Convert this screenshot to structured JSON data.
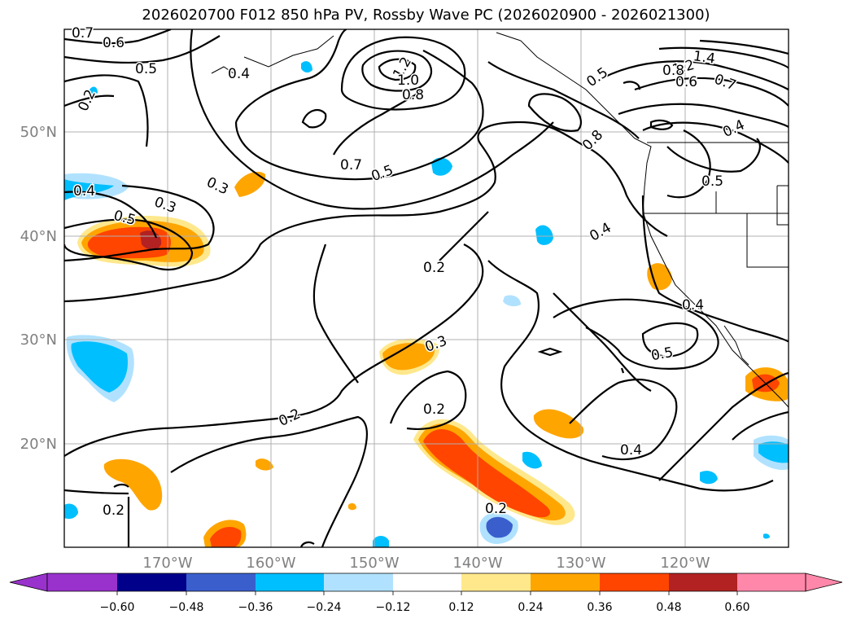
{
  "title": "2026020700 F012 850 hPa PV, Rossby Wave PC (2026020900 - 2026021300)",
  "map": {
    "lat_labels": [
      "50°N",
      "40°N",
      "30°N",
      "20°N"
    ],
    "lon_labels": [
      "170°W",
      "160°W",
      "150°W",
      "140°W",
      "130°W",
      "120°W"
    ],
    "gridlines": true
  },
  "colorbar": {
    "ticks": [
      "−0.60",
      "−0.48",
      "−0.36",
      "−0.24",
      "−0.12",
      "0.12",
      "0.24",
      "0.36",
      "0.48",
      "0.60"
    ],
    "colors": [
      "#9932cc",
      "#00008b",
      "#3a5fcd",
      "#00bfff",
      "#b0e2ff",
      "#ffffff",
      "#ffe88c",
      "#ffa500",
      "#ff4500",
      "#b22222",
      "#ff88aa"
    ]
  },
  "contour_labels": [
    {
      "text": "0.7"
    },
    {
      "text": "0.6"
    },
    {
      "text": "0.5"
    },
    {
      "text": "0.4"
    },
    {
      "text": "0.2"
    },
    {
      "text": "1.2"
    },
    {
      "text": "1.0"
    },
    {
      "text": "0.8"
    },
    {
      "text": "0.7"
    },
    {
      "text": "0.5"
    },
    {
      "text": "0.3"
    },
    {
      "text": "0.4"
    },
    {
      "text": "0.3"
    },
    {
      "text": "0.5"
    },
    {
      "text": "0.2"
    },
    {
      "text": "0.3"
    },
    {
      "text": "0.2"
    },
    {
      "text": "0.2"
    },
    {
      "text": "0.2"
    },
    {
      "text": "0.2"
    },
    {
      "text": "0.5"
    },
    {
      "text": "0.8"
    },
    {
      "text": "0.4"
    },
    {
      "text": "1.4"
    },
    {
      "text": "1.2"
    },
    {
      "text": "0.8"
    },
    {
      "text": "0.6"
    },
    {
      "text": "0.7"
    },
    {
      "text": "0.4"
    },
    {
      "text": "0.5"
    },
    {
      "text": "0.4"
    },
    {
      "text": "0.5"
    },
    {
      "text": "0.4"
    }
  ]
}
